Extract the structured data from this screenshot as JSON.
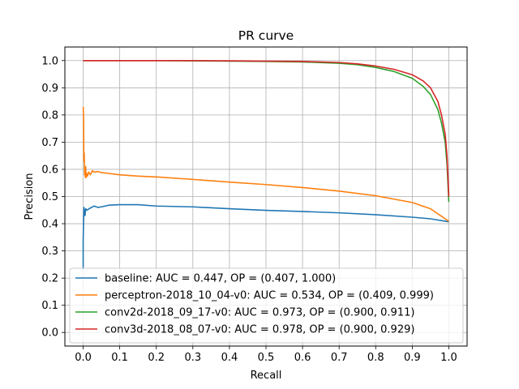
{
  "chart_data": {
    "type": "line",
    "title": "PR curve",
    "xlabel": "Recall",
    "ylabel": "Precision",
    "xlim": [
      -0.05,
      1.05
    ],
    "ylim": [
      -0.05,
      1.05
    ],
    "xticks": [
      0.0,
      0.1,
      0.2,
      0.3,
      0.4,
      0.5,
      0.6,
      0.7,
      0.8,
      0.9,
      1.0
    ],
    "xtick_labels": [
      "0.0",
      "0.1",
      "0.2",
      "0.3",
      "0.4",
      "0.5",
      "0.6",
      "0.7",
      "0.8",
      "0.9",
      "1.0"
    ],
    "yticks": [
      0.0,
      0.1,
      0.2,
      0.3,
      0.4,
      0.5,
      0.6,
      0.7,
      0.8,
      0.9,
      1.0
    ],
    "ytick_labels": [
      "0.0",
      "0.1",
      "0.2",
      "0.3",
      "0.4",
      "0.5",
      "0.6",
      "0.7",
      "0.8",
      "0.9",
      "1.0"
    ],
    "grid": true,
    "legend_position": "lower-left",
    "series": [
      {
        "name": "baseline: AUC = 0.447, OP = (0.407, 1.000)",
        "color": "#1f77b4",
        "x": [
          0.0,
          0.0,
          0.002,
          0.005,
          0.007,
          0.01,
          0.013,
          0.02,
          0.03,
          0.04,
          0.05,
          0.07,
          0.1,
          0.15,
          0.2,
          0.3,
          0.4,
          0.5,
          0.6,
          0.7,
          0.8,
          0.9,
          0.95,
          1.0
        ],
        "y": [
          0.23,
          0.34,
          0.46,
          0.43,
          0.455,
          0.45,
          0.452,
          0.458,
          0.465,
          0.46,
          0.462,
          0.468,
          0.47,
          0.47,
          0.465,
          0.462,
          0.455,
          0.449,
          0.445,
          0.44,
          0.433,
          0.424,
          0.418,
          0.407
        ]
      },
      {
        "name": "perceptron-2018_10_04-v0: AUC = 0.534, OP = (0.409, 0.999)",
        "color": "#ff7f0e",
        "x": [
          0.0,
          0.001,
          0.002,
          0.003,
          0.004,
          0.005,
          0.006,
          0.007,
          0.008,
          0.01,
          0.012,
          0.015,
          0.02,
          0.025,
          0.03,
          0.04,
          0.05,
          0.07,
          0.1,
          0.15,
          0.2,
          0.3,
          0.4,
          0.5,
          0.6,
          0.7,
          0.8,
          0.9,
          0.95,
          1.0
        ],
        "y": [
          0.83,
          0.8,
          0.63,
          0.66,
          0.58,
          0.6,
          0.57,
          0.61,
          0.57,
          0.585,
          0.575,
          0.59,
          0.58,
          0.595,
          0.59,
          0.592,
          0.588,
          0.585,
          0.58,
          0.575,
          0.572,
          0.563,
          0.553,
          0.544,
          0.533,
          0.52,
          0.503,
          0.478,
          0.455,
          0.409
        ]
      },
      {
        "name": "conv2d-2018_09_17-v0: AUC = 0.973, OP = (0.900, 0.911)",
        "color": "#2ca02c",
        "x": [
          0.0,
          0.1,
          0.2,
          0.3,
          0.4,
          0.5,
          0.6,
          0.7,
          0.75,
          0.8,
          0.85,
          0.9,
          0.93,
          0.95,
          0.97,
          0.98,
          0.99,
          0.995,
          1.0
        ],
        "y": [
          1.0,
          1.0,
          1.0,
          0.999,
          0.998,
          0.997,
          0.995,
          0.99,
          0.985,
          0.975,
          0.96,
          0.935,
          0.905,
          0.875,
          0.82,
          0.77,
          0.7,
          0.62,
          0.48
        ]
      },
      {
        "name": "conv3d-2018_08_07-v0: AUC = 0.978, OP = (0.900, 0.929)",
        "color": "#d62728",
        "x": [
          0.0,
          0.1,
          0.2,
          0.3,
          0.4,
          0.5,
          0.6,
          0.7,
          0.75,
          0.8,
          0.85,
          0.9,
          0.93,
          0.95,
          0.97,
          0.98,
          0.99,
          0.995,
          1.0
        ],
        "y": [
          1.0,
          1.0,
          1.0,
          1.0,
          0.999,
          0.998,
          0.997,
          0.993,
          0.988,
          0.98,
          0.968,
          0.948,
          0.925,
          0.9,
          0.85,
          0.8,
          0.73,
          0.65,
          0.5
        ]
      }
    ]
  }
}
